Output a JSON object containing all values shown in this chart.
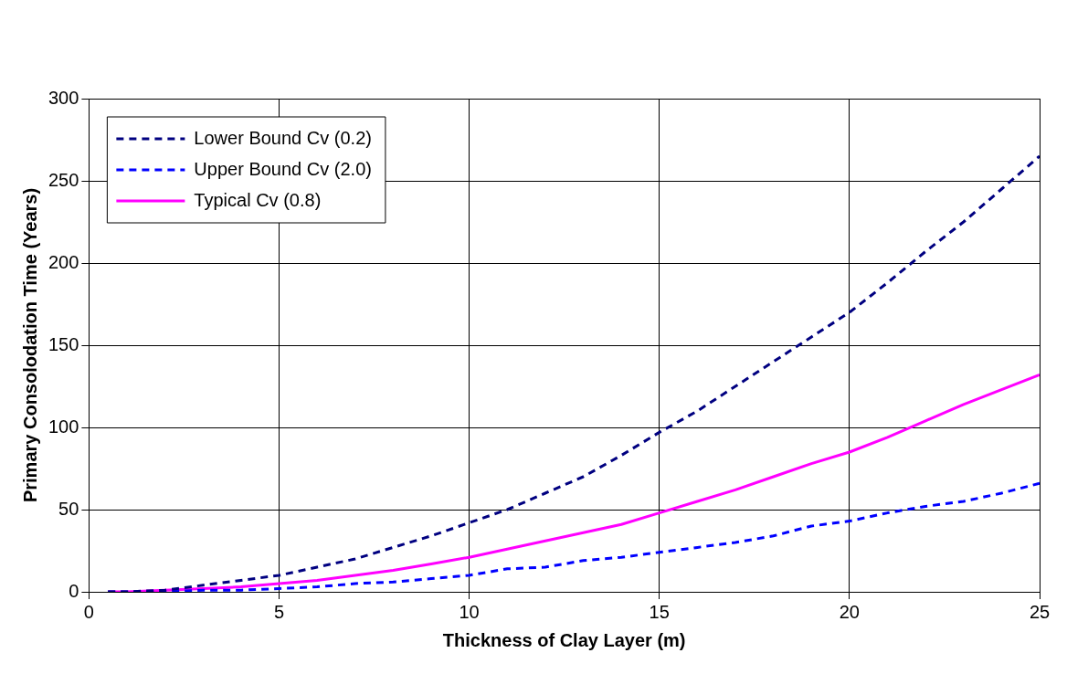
{
  "chart_data": {
    "type": "line",
    "xlabel": "Thickness of Clay Layer (m)",
    "ylabel": "Primary Consolodation Time (Years)",
    "x": [
      0.5,
      1,
      2,
      3,
      4,
      5,
      6,
      7,
      8,
      9,
      10,
      11,
      12,
      13,
      14,
      15,
      16,
      17,
      18,
      19,
      20,
      21,
      22,
      23,
      24,
      25
    ],
    "series": [
      {
        "name": "Lower Bound Cv (0.2)",
        "color": "#000080",
        "line_style": "dashed",
        "values": [
          0,
          0,
          1,
          4,
          7,
          10,
          15,
          20,
          27,
          34,
          42,
          50,
          60,
          70,
          83,
          97,
          110,
          125,
          140,
          155,
          170,
          188,
          207,
          225,
          245,
          265
        ]
      },
      {
        "name": "Upper Bound Cv (2.0)",
        "color": "#0000ff",
        "line_style": "dashed",
        "values": [
          0,
          0,
          0,
          1,
          1,
          2,
          3,
          5,
          6,
          8,
          10,
          14,
          15,
          19,
          21,
          24,
          27,
          30,
          34,
          40,
          43,
          48,
          52,
          55,
          60,
          66
        ]
      },
      {
        "name": "Typical Cv (0.8)",
        "color": "#ff00ff",
        "line_style": "solid",
        "values": [
          0,
          0,
          1,
          2,
          3,
          5,
          7,
          10,
          13,
          17,
          21,
          26,
          31,
          36,
          41,
          48,
          55,
          62,
          70,
          78,
          85,
          94,
          104,
          114,
          123,
          132
        ]
      }
    ],
    "xlim": [
      0,
      25
    ],
    "xticks": [
      0,
      5,
      10,
      15,
      20,
      25
    ],
    "ylim": [
      0,
      300
    ],
    "yticks": [
      0,
      50,
      100,
      150,
      200,
      250,
      300
    ],
    "grid": true,
    "legend": "top left",
    "marker": "none"
  }
}
